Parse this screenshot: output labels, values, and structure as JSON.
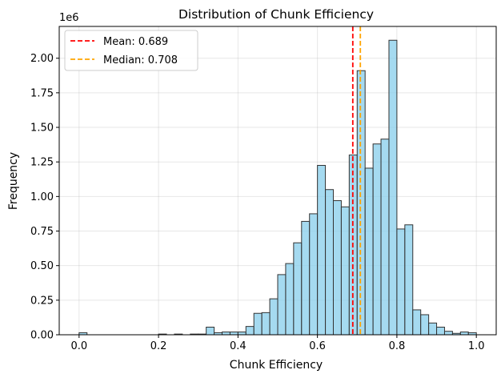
{
  "chart_data": {
    "type": "bar",
    "title": "Distribution of Chunk Efficiency",
    "xlabel": "Chunk Efficiency",
    "ylabel": "Frequency",
    "y_scale_label": "1e6",
    "xlim": [
      -0.05,
      1.05
    ],
    "ylim": [
      0,
      2.23
    ],
    "y_units": "millions",
    "x_ticks": [
      "0.0",
      "0.2",
      "0.4",
      "0.6",
      "0.8",
      "1.0"
    ],
    "x_tick_values": [
      0.0,
      0.2,
      0.4,
      0.6,
      0.8,
      1.0
    ],
    "y_ticks": [
      "0.00",
      "0.25",
      "0.50",
      "0.75",
      "1.00",
      "1.25",
      "1.50",
      "1.75",
      "2.00"
    ],
    "y_tick_values": [
      0.0,
      0.25,
      0.5,
      0.75,
      1.0,
      1.25,
      1.5,
      1.75,
      2.0
    ],
    "grid": true,
    "bar_fill": "#87ceeb",
    "bar_edge": "#333333",
    "bin_edges_start": 0.0,
    "bin_width": 0.02,
    "counts": [
      0.015,
      0,
      0,
      0,
      0,
      0,
      0,
      0,
      0,
      0,
      0.005,
      0,
      0.005,
      0,
      0.005,
      0.005,
      0.055,
      0.015,
      0.02,
      0.02,
      0.02,
      0.06,
      0.155,
      0.16,
      0.26,
      0.435,
      0.515,
      0.665,
      0.82,
      0.875,
      1.225,
      1.05,
      0.97,
      0.925,
      1.3,
      1.91,
      1.205,
      1.38,
      1.415,
      2.13,
      0.765,
      0.795,
      0.18,
      0.145,
      0.085,
      0.055,
      0.025,
      0.01,
      0.02,
      0.015
    ],
    "reference_lines": [
      {
        "label": "Mean: 0.689",
        "x": 0.689,
        "color": "#ff0000"
      },
      {
        "label": "Median: 0.708",
        "x": 0.708,
        "color": "#ffa500"
      }
    ],
    "legend_position": "upper-left"
  }
}
